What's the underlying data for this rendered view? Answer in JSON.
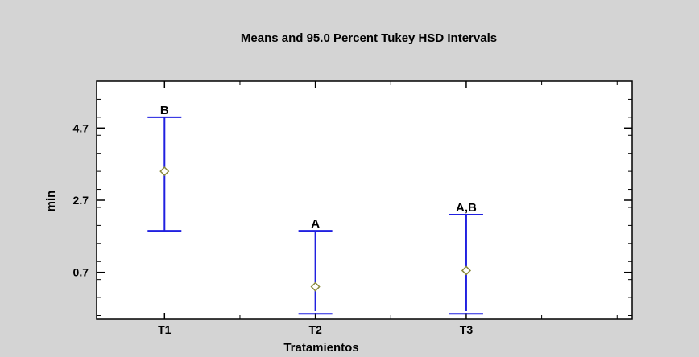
{
  "colors": {
    "background": "#d4d4d4",
    "plot_background": "#ffffff",
    "interval": "#2020e0",
    "mean_marker": "#8a8a3a",
    "axis": "#000000"
  },
  "chart_data": {
    "type": "interval",
    "title": "Means and 95.0 Percent Tukey HSD Intervals",
    "xlabel": "Tratamientos",
    "ylabel": "min",
    "categories": [
      "T1",
      "T2",
      "T3"
    ],
    "yticks": [
      "4.7",
      "2.7",
      "0.7"
    ],
    "ytick_values": [
      4.7,
      2.7,
      0.7
    ],
    "ylim": [
      -0.6,
      6.0
    ],
    "xlim": [
      0.55,
      4.1
    ],
    "grid": false,
    "series": [
      {
        "means": [
          3.5,
          0.3,
          0.75
        ],
        "lower": [
          1.85,
          -0.45,
          -0.45
        ],
        "upper": [
          5.0,
          1.85,
          2.3
        ],
        "group_labels": [
          "B",
          "A",
          "A,B"
        ]
      }
    ]
  }
}
